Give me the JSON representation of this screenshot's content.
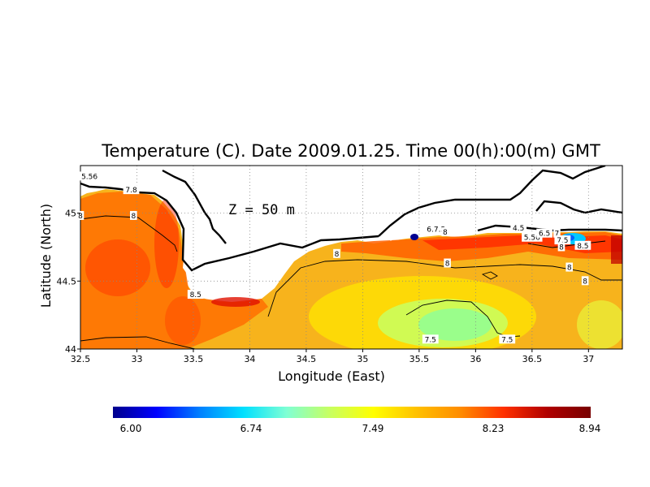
{
  "chart_data": {
    "type": "heatmap",
    "title": "Temperature (C). Date 2009.01.25. Time 00(h):00(m) GMT",
    "xlabel": "Longitude (East)",
    "ylabel": "Latitude (North)",
    "annotation": "Z = 50 m",
    "xlim": [
      32.5,
      37.3
    ],
    "ylim": [
      44.0,
      45.35
    ],
    "x_ticks": [
      "32.5",
      "33",
      "33.5",
      "34",
      "34.5",
      "35",
      "35.5",
      "36",
      "36.5",
      "37"
    ],
    "y_ticks": [
      "44",
      "44.5",
      "45"
    ],
    "grid": true,
    "colorbar": {
      "ticks": [
        "6.00",
        "6.74",
        "7.49",
        "8.23",
        "8.94"
      ],
      "min": 6.0,
      "max": 8.94,
      "colors": [
        "#00008c",
        "#0000ff",
        "#0080ff",
        "#00e0ff",
        "#7fffd4",
        "#c8ff60",
        "#ffff00",
        "#ffc000",
        "#ff8c00",
        "#ff3000",
        "#b00000",
        "#780000"
      ]
    },
    "contour_labels": [
      {
        "text": "5.56",
        "lon": 32.58,
        "lat": 45.27
      },
      {
        "text": "7.8",
        "lon": 32.95,
        "lat": 45.17
      },
      {
        "text": "8",
        "lon": 32.97,
        "lat": 44.98
      },
      {
        "text": "8",
        "lon": 32.5,
        "lat": 44.98
      },
      {
        "text": "8.5",
        "lon": 33.52,
        "lat": 44.4
      },
      {
        "text": "6.7.5",
        "lon": 35.65,
        "lat": 44.88
      },
      {
        "text": "8",
        "lon": 35.73,
        "lat": 44.86
      },
      {
        "text": "4.5",
        "lon": 36.38,
        "lat": 44.89
      },
      {
        "text": "5.56",
        "lon": 36.5,
        "lat": 44.82
      },
      {
        "text": "6.5",
        "lon": 36.61,
        "lat": 44.85
      },
      {
        "text": "7",
        "lon": 36.72,
        "lat": 44.85
      },
      {
        "text": "7.5",
        "lon": 36.77,
        "lat": 44.8
      },
      {
        "text": "8",
        "lon": 36.76,
        "lat": 44.75
      },
      {
        "text": "8.5",
        "lon": 36.95,
        "lat": 44.76
      },
      {
        "text": "8",
        "lon": 34.77,
        "lat": 44.7
      },
      {
        "text": "8",
        "lon": 35.75,
        "lat": 44.63
      },
      {
        "text": "8",
        "lon": 36.83,
        "lat": 44.6
      },
      {
        "text": "8",
        "lon": 36.97,
        "lat": 44.5
      },
      {
        "text": "7.5",
        "lon": 35.6,
        "lat": 44.07
      },
      {
        "text": "7.5",
        "lon": 36.28,
        "lat": 44.07
      }
    ]
  }
}
